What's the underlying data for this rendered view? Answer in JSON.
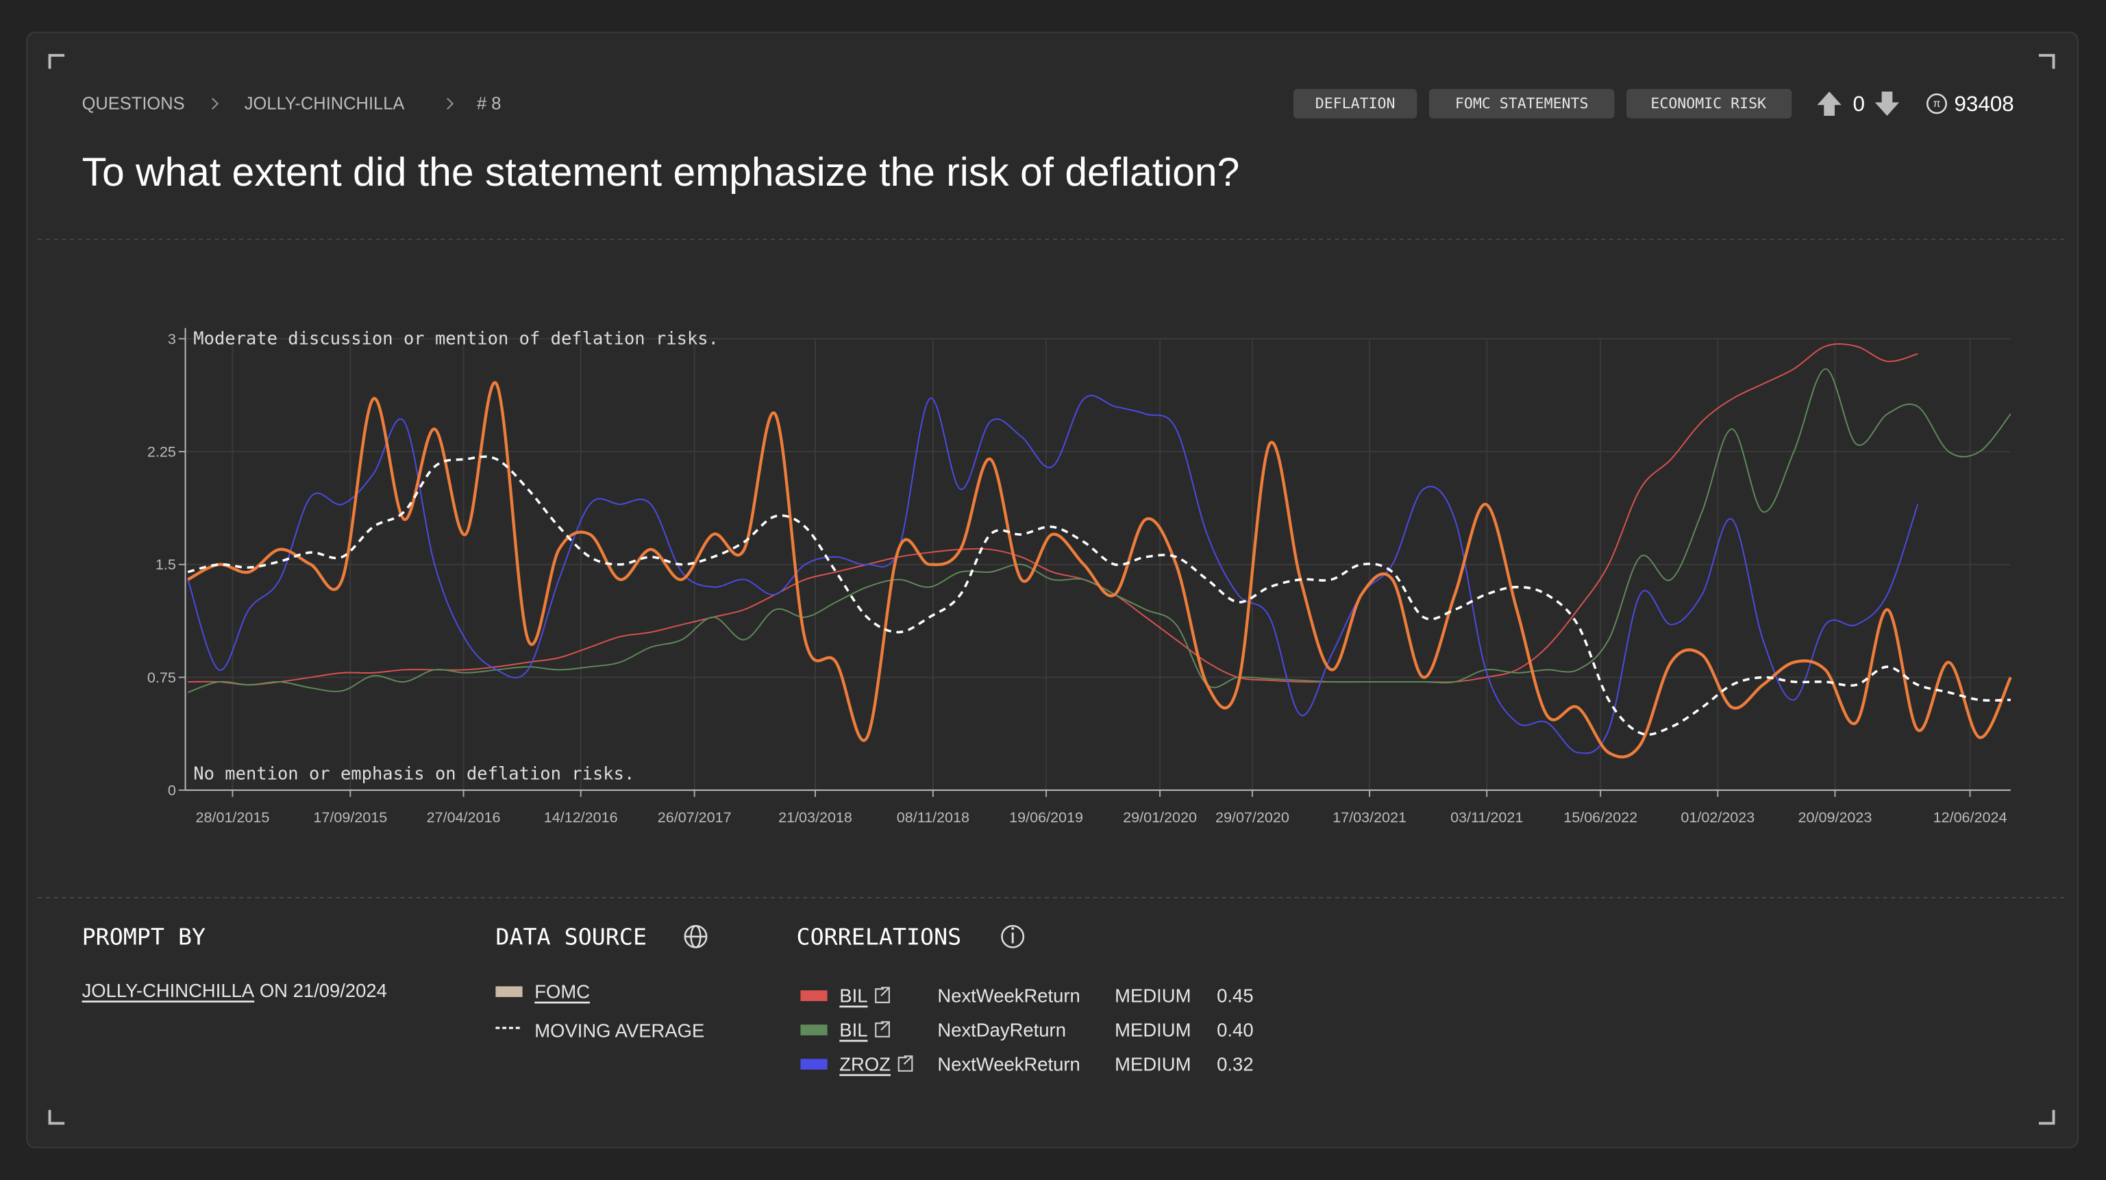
{
  "header": {
    "breadcrumbs": [
      "QUESTIONS",
      "JOLLY-CHINCHILLA",
      "# 8"
    ],
    "tags": [
      "DEFLATION",
      "FOMC STATEMENTS",
      "ECONOMIC RISK"
    ],
    "votes": 0,
    "score": 93408,
    "title": "To what extent did the statement emphasize the risk of deflation?"
  },
  "chart_data": {
    "type": "line",
    "x": [
      "01/11/2014",
      "01/01/2015",
      "01/03/2015",
      "01/05/2015",
      "01/07/2015",
      "01/09/2015",
      "01/11/2015",
      "01/01/2016",
      "01/03/2016",
      "01/05/2016",
      "01/07/2016",
      "01/09/2016",
      "01/11/2016",
      "01/01/2017",
      "01/03/2017",
      "01/05/2017",
      "01/07/2017",
      "01/09/2017",
      "01/11/2017",
      "01/01/2018",
      "01/03/2018",
      "01/05/2018",
      "01/07/2018",
      "01/09/2018",
      "01/11/2018",
      "01/01/2019",
      "01/03/2019",
      "01/05/2019",
      "01/07/2019",
      "01/09/2019",
      "01/11/2019",
      "01/01/2020",
      "01/03/2020",
      "01/05/2020",
      "01/07/2020",
      "01/09/2020",
      "01/11/2020",
      "01/01/2021",
      "01/03/2021",
      "01/05/2021",
      "01/07/2021",
      "01/09/2021",
      "01/11/2021",
      "01/01/2022",
      "01/03/2022",
      "01/05/2022",
      "01/07/2022",
      "01/09/2022",
      "01/11/2022",
      "01/01/2023",
      "01/03/2023",
      "01/05/2023",
      "01/07/2023",
      "01/09/2023",
      "01/11/2023",
      "01/01/2024",
      "01/03/2024",
      "01/05/2024",
      "01/07/2024",
      "31/08/2024"
    ],
    "series": [
      {
        "name": "BIL",
        "color": "#d9534f",
        "width": 1,
        "values": [
          0.72,
          0.72,
          0.7,
          0.72,
          0.75,
          0.78,
          0.78,
          0.8,
          0.8,
          0.8,
          0.82,
          0.85,
          0.88,
          0.95,
          1.02,
          1.05,
          1.1,
          1.15,
          1.2,
          1.3,
          1.4,
          1.45,
          1.5,
          1.55,
          1.58,
          1.6,
          1.6,
          1.55,
          1.45,
          1.4,
          1.3,
          1.15,
          1.0,
          0.85,
          0.75,
          0.73,
          0.72,
          0.72,
          0.72,
          0.72,
          0.72,
          0.72,
          0.75,
          0.8,
          0.95,
          1.2,
          1.5,
          2.0,
          2.2,
          2.45,
          2.6,
          2.7,
          2.8,
          2.95,
          2.95,
          2.85,
          2.9,
          null,
          null,
          null
        ]
      },
      {
        "name": "BIL",
        "color": "#5f8a5a",
        "width": 1,
        "values": [
          0.65,
          0.72,
          0.7,
          0.72,
          0.68,
          0.66,
          0.76,
          0.72,
          0.8,
          0.78,
          0.8,
          0.82,
          0.8,
          0.82,
          0.85,
          0.95,
          1.0,
          1.15,
          1.0,
          1.2,
          1.15,
          1.25,
          1.35,
          1.4,
          1.35,
          1.45,
          1.45,
          1.5,
          1.4,
          1.4,
          1.3,
          1.2,
          1.1,
          0.7,
          0.75,
          0.74,
          0.73,
          0.72,
          0.72,
          0.72,
          0.72,
          0.72,
          0.8,
          0.78,
          0.8,
          0.8,
          1.0,
          1.55,
          1.4,
          1.85,
          2.4,
          1.85,
          2.25,
          2.8,
          2.3,
          2.5,
          2.55,
          2.25,
          2.25,
          2.5
        ]
      },
      {
        "name": "ZROZ",
        "color": "#4b4be6",
        "width": 1,
        "values": [
          1.4,
          0.8,
          1.2,
          1.4,
          1.95,
          1.9,
          2.1,
          2.45,
          1.5,
          1.0,
          0.8,
          0.8,
          1.4,
          1.9,
          1.9,
          1.9,
          1.45,
          1.35,
          1.4,
          1.3,
          1.5,
          1.55,
          1.5,
          1.6,
          2.6,
          2.0,
          2.45,
          2.35,
          2.15,
          2.6,
          2.55,
          2.5,
          2.4,
          1.7,
          1.3,
          1.15,
          0.5,
          0.9,
          1.3,
          1.5,
          2.0,
          1.8,
          0.8,
          0.45,
          0.45,
          0.25,
          0.4,
          1.3,
          1.1,
          1.3,
          1.8,
          1.0,
          0.6,
          1.1,
          1.1,
          1.3,
          1.9,
          null,
          null,
          null
        ]
      },
      {
        "name": "FOMC",
        "color": "#ee7d3b",
        "legend_color": "#c9b9a5",
        "width": 2.2,
        "values": [
          1.4,
          1.5,
          1.45,
          1.6,
          1.5,
          1.4,
          2.6,
          1.8,
          2.4,
          1.7,
          2.7,
          1.0,
          1.6,
          1.7,
          1.4,
          1.6,
          1.4,
          1.7,
          1.6,
          2.5,
          1.0,
          0.85,
          0.35,
          1.6,
          1.5,
          1.6,
          2.2,
          1.4,
          1.7,
          1.5,
          1.3,
          1.8,
          1.5,
          0.7,
          0.7,
          2.3,
          1.4,
          0.8,
          1.3,
          1.4,
          0.75,
          1.3,
          1.9,
          1.2,
          0.5,
          0.55,
          0.25,
          0.3,
          0.85,
          0.9,
          0.55,
          0.7,
          0.85,
          0.8,
          0.45,
          1.2,
          0.4,
          0.85,
          0.35,
          0.75
        ]
      },
      {
        "name": "MOVING AVERAGE",
        "color": "#ffffff",
        "width": 1.8,
        "dashed": true,
        "values": [
          1.45,
          1.5,
          1.48,
          1.52,
          1.58,
          1.55,
          1.75,
          1.85,
          2.15,
          2.2,
          2.2,
          2.0,
          1.75,
          1.55,
          1.5,
          1.55,
          1.5,
          1.55,
          1.65,
          1.82,
          1.75,
          1.45,
          1.15,
          1.05,
          1.15,
          1.3,
          1.7,
          1.7,
          1.75,
          1.65,
          1.5,
          1.55,
          1.55,
          1.4,
          1.25,
          1.35,
          1.4,
          1.4,
          1.5,
          1.45,
          1.15,
          1.2,
          1.3,
          1.35,
          1.3,
          1.1,
          0.6,
          0.38,
          0.42,
          0.55,
          0.7,
          0.75,
          0.72,
          0.72,
          0.7,
          0.82,
          0.7,
          0.65,
          0.6,
          0.6
        ]
      }
    ],
    "xlim": [
      "27/10/2014",
      "31/08/2024"
    ],
    "xticks": [
      "28/01/2015",
      "17/09/2015",
      "27/04/2016",
      "14/12/2016",
      "26/07/2017",
      "21/03/2018",
      "08/11/2018",
      "19/06/2019",
      "29/01/2020",
      "29/07/2020",
      "17/03/2021",
      "03/11/2021",
      "15/06/2022",
      "01/02/2023",
      "20/09/2023",
      "12/06/2024"
    ],
    "ylim": [
      0,
      3
    ],
    "yticks": [
      0,
      0.75,
      1.5,
      2.25,
      3
    ],
    "grid": true,
    "annotations": [
      "Moderate discussion or mention of deflation risks.",
      "No mention or emphasis on deflation risks."
    ]
  },
  "footer": {
    "prompt_by": {
      "heading": "PROMPT BY",
      "user": "JOLLY-CHINCHILLA",
      "date": "ON 21/09/2024"
    },
    "data_source": {
      "heading": "DATA SOURCE"
    },
    "correlations": {
      "heading": "CORRELATIONS",
      "rows": [
        {
          "metric": "NextWeekReturn",
          "level": "MEDIUM",
          "value": "0.45"
        },
        {
          "metric": "NextDayReturn",
          "level": "MEDIUM",
          "value": "0.40"
        },
        {
          "metric": "NextWeekReturn",
          "level": "MEDIUM",
          "value": "0.32"
        }
      ]
    }
  }
}
